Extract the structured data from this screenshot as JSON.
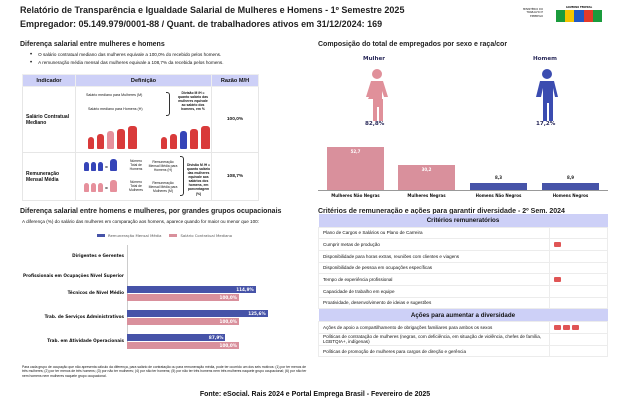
{
  "header": {
    "title": "Relatório de Transparência e Igualdade Salarial de Mulheres e Homens - 1º Semestre 2025",
    "employer": "Empregador: 05.149.979/0001-88   /    Quant. de trabalhadores ativos em 31/12/2024: 169",
    "logo_ministry": "MINISTÉRIO DO TRABALHO E EMPREGO",
    "logo_gov": "GOVERNO FEDERAL BRASIL UNIÃO E RECONSTRUÇÃO"
  },
  "diff": {
    "title": "Diferença salarial entre mulheres e homens",
    "bullets": [
      "O salário contratual mediano das mulheres equivale a 100,0% do recebido pelos homens.",
      "A remuneração média mensal das mulheres equivale a 108,7% da recebida pelos homens."
    ],
    "headers": [
      "Indicador",
      "Definição",
      "Razão M/H"
    ],
    "rows": [
      {
        "indicator": "Salário Contratual Mediano",
        "def_m": "Salário mediano para Mulheres (M)",
        "def_h": "Salário mediano para Homens (H)",
        "def_div": "Divisão M /H = quanto salário das mulheres equivale ao salário dos homens, em %",
        "ratio": "100,0%"
      },
      {
        "indicator": "Remuneração Mensal Média",
        "n_h": "Número Total de Homens",
        "n_m": "Número Total de Mulheres",
        "r_h": "Remuneração Mensal Média para Homens (H)",
        "r_m": "Remuneração Mensal Média para Mulheres (M)",
        "def_div": "Divisão M /H = quanto salário das mulheres equivale aos salários dos homens, em porcentagem (%)",
        "ratio": "108,7%"
      }
    ]
  },
  "occ": {
    "title": "Diferença salarial entre homens e mulheres, por grandes grupos ocupacionais",
    "subtitle": "A diferença (%) do salário das mulheres em comparação aos homens, aparece quando for maior ou menor que 100:",
    "footnote": "Para cada grupo de ocupação que não apresenta cálculo da diferença, para salário de contratação ou para remuneração média, pode ter ocorrido um dos seis motivos: (1) por ter menos de três mulheres; (2) por ter menos de três homens; (3) por não ter mulheres; (4) por não ter homens; (5) por não ter três homens nem três mulheres naquele grupo ocupacional; (6) por não ter nem homens nem mulheres naquele grupo ocupacional."
  },
  "chart_data": [
    {
      "type": "bar",
      "orientation": "horizontal",
      "title": "Diferença salarial entre homens e mulheres, por grandes grupos ocupacionais",
      "categories": [
        "Dirigentes e Gerentes",
        "Profissionais em Ocupações Nível Superior",
        "Técnicos de Nível Médio",
        "Trab. de Serviços Administrativos",
        "Trab. em Atividade Operacionais"
      ],
      "series": [
        {
          "name": "Remuneração Mensal Média",
          "color": "#4653a8",
          "values": [
            null,
            null,
            114.9,
            125.6,
            87.9
          ],
          "labels": [
            "",
            "",
            "114,9%",
            "125,6%",
            "87,9%"
          ]
        },
        {
          "name": "Salário Contratual Mediano",
          "color": "#d9909c",
          "values": [
            null,
            null,
            100.0,
            100.0,
            100.0
          ],
          "labels": [
            "",
            "",
            "100,0%",
            "100,0%",
            "100,0%"
          ]
        }
      ],
      "legend": "top"
    },
    {
      "type": "bar",
      "title": "Composição do total de empregados por sexo e raça/cor",
      "categories": [
        "Mulheres Não Negras",
        "Mulheres Negras",
        "Homens Não Negros",
        "Homens Negros"
      ],
      "values": [
        52.7,
        30.2,
        8.3,
        8.9
      ],
      "labels": [
        "52,7",
        "30,2",
        "8,3",
        "8,9"
      ],
      "colors": [
        "#d9909c",
        "#d9909c",
        "#4653a8",
        "#4653a8"
      ]
    }
  ],
  "comp": {
    "woman": "Mulher",
    "man": "Homem",
    "woman_pct": "82,8%",
    "man_pct": "17,2%",
    "woman_color": "#e0909a",
    "man_color": "#3b4cb0"
  },
  "crit": {
    "title": "Critérios de remuneração e ações para garantir diversidade - 2º Sem. 2024",
    "h1": "Critérios remuneratórios",
    "rows1": [
      {
        "l": "Plano de Cargos e Salários ou Plano de Carreira",
        "n": 0
      },
      {
        "l": "Cumprir metas de produção",
        "n": 1
      },
      {
        "l": "Disponibilidade para horas extras, reuniões com clientes e viagens",
        "n": 0
      },
      {
        "l": "Disponibilidade de pessoa em ocupações específicas",
        "n": 0
      },
      {
        "l": "Tempo de experiência profissional",
        "n": 1
      },
      {
        "l": "Capacidade de trabalho em equipe",
        "n": 0
      },
      {
        "l": "Proatividade, desenvolvimento de ideias e sugestões",
        "n": 0
      }
    ],
    "h2": "Ações para aumentar a diversidade",
    "rows2": [
      {
        "l": "Ações de apoio a compartilhamento de obrigações familiares para ambos os sexos",
        "n": 3
      },
      {
        "l": "Políticas de contratação de mulheres (negras, com deficiência, em situação de violência, chefes de família, LGBTQIA+, indígenas)",
        "n": 0
      },
      {
        "l": "Políticas de promoção de mulheres para cargos de direção e gerência",
        "n": 0
      }
    ]
  },
  "source": "Fonte: eSocial. Rais 2024 e Portal Emprega Brasil - Fevereiro de 2025"
}
